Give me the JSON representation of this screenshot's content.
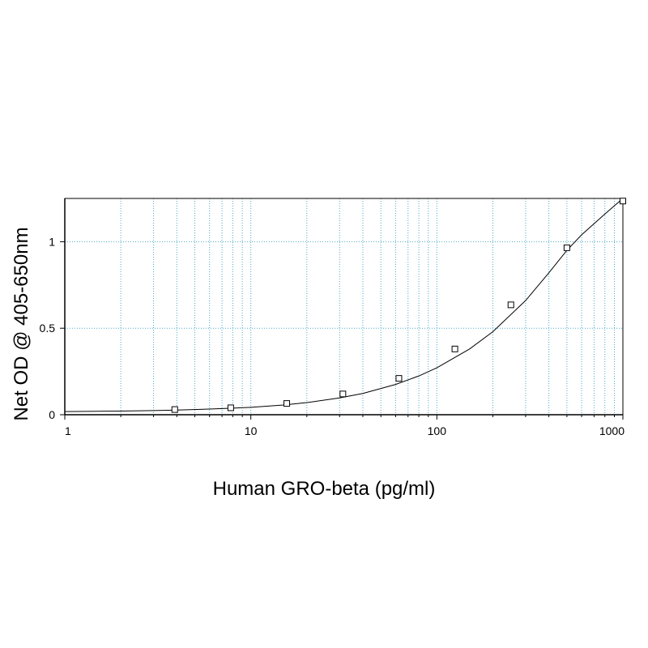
{
  "chart_data": {
    "type": "scatter",
    "title": "",
    "xlabel": "Human GRO-beta (pg/ml)",
    "ylabel": "Net OD @ 405-650nm",
    "x_scale": "log",
    "xlim": [
      1,
      1000
    ],
    "ylim": [
      0,
      1.25
    ],
    "x_ticks": [
      {
        "value": 1,
        "label": "1"
      },
      {
        "value": 10,
        "label": "10"
      },
      {
        "value": 100,
        "label": "100"
      },
      {
        "value": 1000,
        "label": "1000"
      }
    ],
    "y_ticks": [
      {
        "value": 0,
        "label": "0"
      },
      {
        "value": 0.5,
        "label": "0.5"
      },
      {
        "value": 1,
        "label": "1"
      }
    ],
    "grid": true,
    "legend": "none",
    "series": [
      {
        "marker": "open-square",
        "x": [
          3.9,
          7.8,
          15.6,
          31.25,
          62.5,
          125,
          250,
          500,
          1000
        ],
        "y": [
          0.03,
          0.04,
          0.065,
          0.12,
          0.21,
          0.38,
          0.635,
          0.965,
          1.235
        ]
      }
    ],
    "fit_curve": {
      "type": "four-parameter-logistic",
      "x": [
        1,
        1.5,
        2,
        3,
        4,
        6,
        8,
        10,
        15,
        20,
        30,
        40,
        60,
        80,
        100,
        150,
        200,
        300,
        400,
        500,
        600,
        800,
        1000
      ],
      "y": [
        0.018,
        0.02,
        0.021,
        0.024,
        0.027,
        0.033,
        0.038,
        0.043,
        0.056,
        0.07,
        0.097,
        0.123,
        0.175,
        0.224,
        0.271,
        0.38,
        0.48,
        0.66,
        0.82,
        0.95,
        1.04,
        1.16,
        1.25
      ]
    },
    "colors": {
      "grid": "#4aa8c8",
      "axis": "#000000",
      "curve": "#000000",
      "marker": "#000000"
    }
  }
}
